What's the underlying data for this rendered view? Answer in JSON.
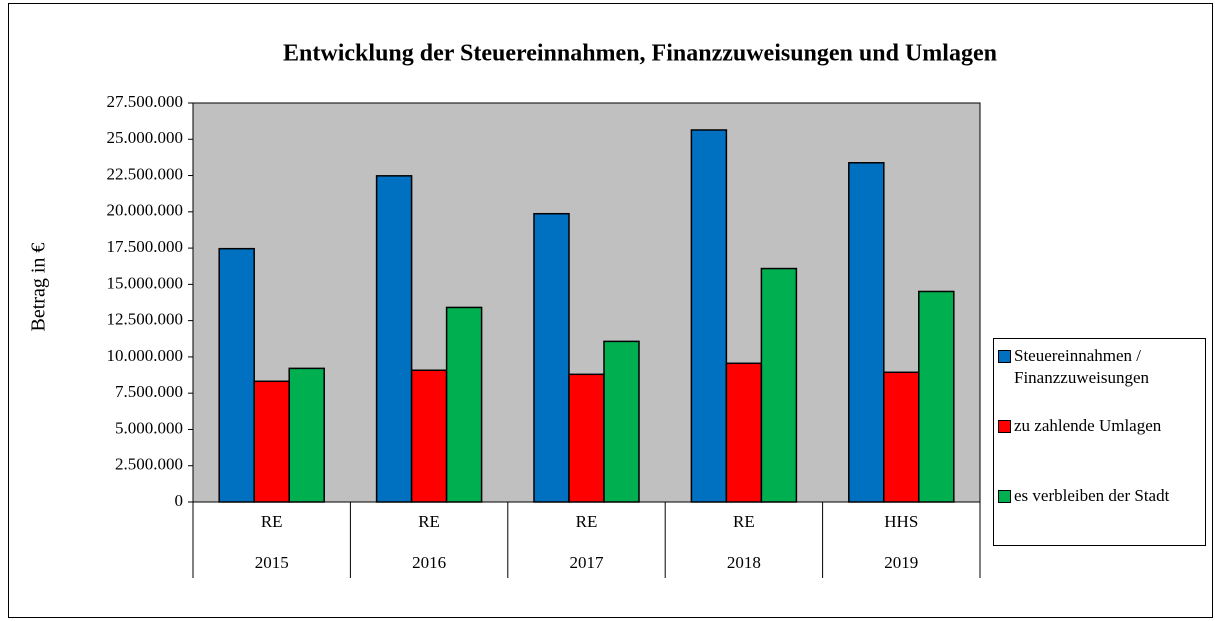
{
  "chart_data": {
    "type": "bar",
    "title": "Entwicklung der Steuereinnahmen, Finanzzuweisungen und Umlagen",
    "y_label": "Betrag in €",
    "categories": [
      "RE",
      "RE",
      "RE",
      "RE",
      "HHS"
    ],
    "category_years": [
      "2015",
      "2016",
      "2017",
      "2018",
      "2019"
    ],
    "series": [
      {
        "name": "Steuereinnahmen / Finanzzuweisungen",
        "color": "#0070c0",
        "values": [
          17460000,
          22480000,
          19870000,
          25640000,
          23380000
        ]
      },
      {
        "name": "zu zahlende Umlagen",
        "color": "#ff0000",
        "values": [
          8320000,
          9080000,
          8800000,
          9560000,
          8940000
        ]
      },
      {
        "name": "es verbleiben der Stadt",
        "color": "#00b050",
        "values": [
          9210000,
          13410000,
          11070000,
          16090000,
          14510000
        ]
      }
    ],
    "ylim": [
      0,
      27500000
    ],
    "yticks": [
      0,
      {
        "value": 2500000,
        "label": "2.500.000"
      },
      {
        "value": 5000000,
        "label": "5.000.000"
      },
      {
        "value": 7500000,
        "label": "7.500.000"
      },
      {
        "value": 10000000,
        "label": "10.000.000"
      },
      {
        "value": 12500000,
        "label": "12.500.000"
      },
      {
        "value": 15000000,
        "label": "15.000.000"
      },
      {
        "value": 17500000,
        "label": "17.500.000"
      },
      {
        "value": 20000000,
        "label": "20.000.000"
      },
      {
        "value": 22500000,
        "label": "22.500.000"
      },
      {
        "value": 25000000,
        "label": "25.000.000"
      },
      {
        "value": 27500000,
        "label": "27.500.000"
      }
    ],
    "plot_background": "#c0c0c0",
    "legend": "right"
  }
}
